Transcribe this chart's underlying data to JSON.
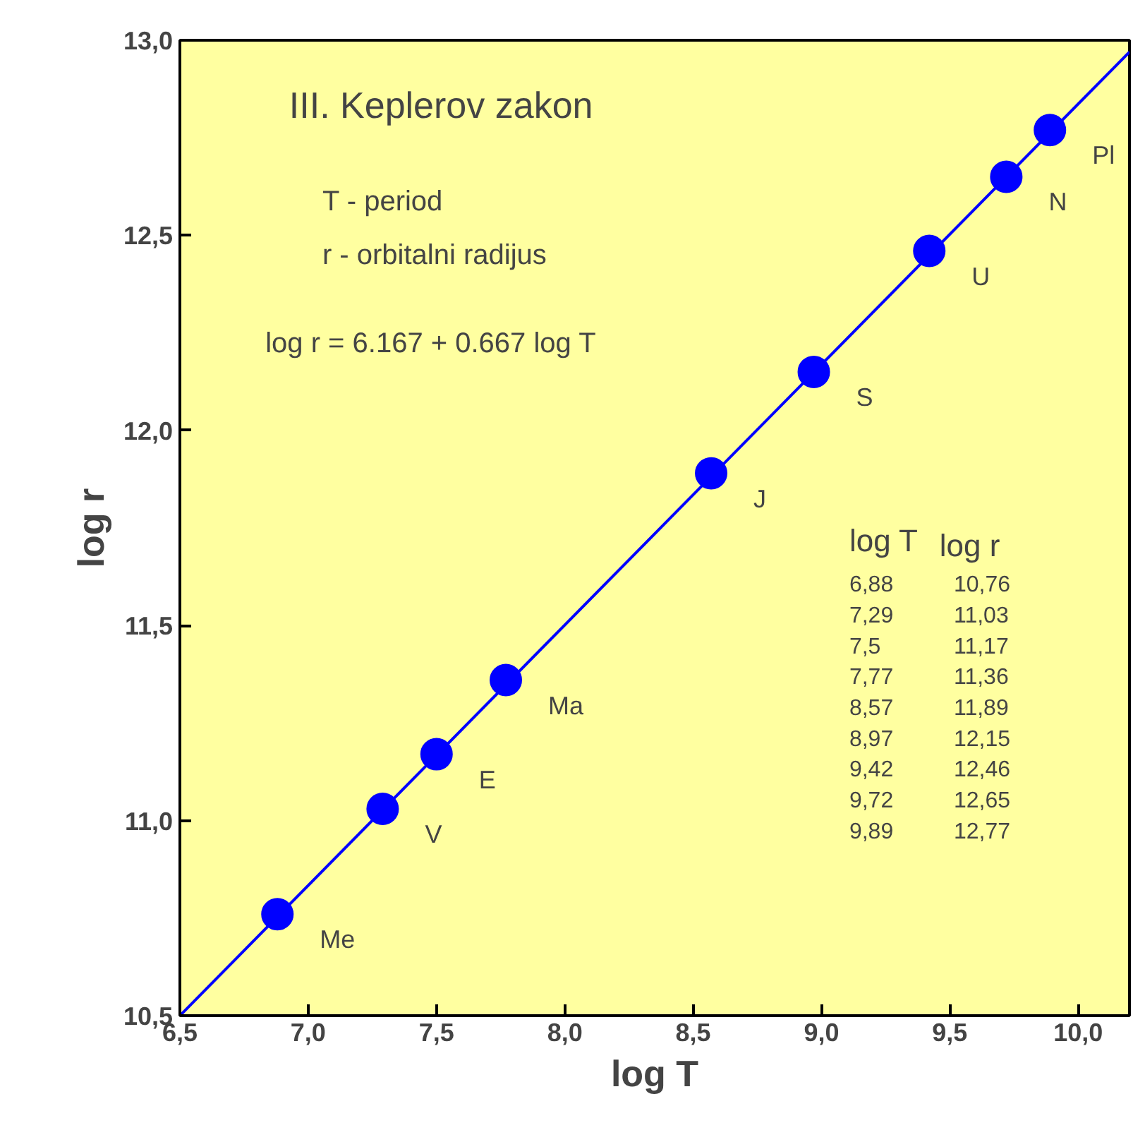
{
  "chart_data": {
    "type": "scatter",
    "title": "III. Keplerov zakon",
    "xlabel": "log T",
    "ylabel": "log r",
    "x": [
      6.88,
      7.29,
      7.5,
      7.77,
      8.57,
      8.97,
      9.42,
      9.72,
      9.89
    ],
    "series": [
      {
        "color": "#0000ff",
        "values": [
          10.76,
          11.03,
          11.17,
          11.36,
          11.89,
          12.15,
          12.46,
          12.65,
          12.77
        ]
      },
      {
        "type": "line",
        "marker": "none",
        "color": "#0000ff",
        "x": [
          6.5,
          10.2
        ],
        "values": [
          10.5,
          12.97
        ]
      }
    ],
    "xlim": [
      6.5,
      10.2
    ],
    "ylim": [
      10.5,
      13.0
    ],
    "xticks": [
      {
        "value": 6.5,
        "label": "6,5"
      },
      {
        "value": 7.0,
        "label": "7,0"
      },
      {
        "value": 7.5,
        "label": "7,5"
      },
      {
        "value": 8.0,
        "label": "8,0"
      },
      {
        "value": 8.5,
        "label": "8,5"
      },
      {
        "value": 9.0,
        "label": "9,0"
      },
      {
        "value": 9.5,
        "label": "9,5"
      },
      {
        "value": 10.0,
        "label": "10,0"
      }
    ],
    "yticks": [
      {
        "value": 10.5,
        "label": "10,5"
      },
      {
        "value": 11.0,
        "label": "11,0"
      },
      {
        "value": 11.5,
        "label": "11,5"
      },
      {
        "value": 12.0,
        "label": "12,0"
      },
      {
        "value": 12.5,
        "label": "12,5"
      },
      {
        "value": 13.0,
        "label": "13,0"
      }
    ],
    "annotations": [
      "T -  period",
      "r -  orbitalni radijus",
      "log r = 6.167 + 0.667 log T",
      "log T",
      "log r",
      "6,88",
      "10,76",
      "7,29",
      "11,03",
      "7,5",
      "11,17",
      "7,77",
      "11,36",
      "8,57",
      "11,89",
      "8,97",
      "12,15",
      "9,42",
      "12,46",
      "9,72",
      "12,65",
      "9,89",
      "12,77",
      {
        "text": "Me",
        "x": 6.88,
        "y": 10.76
      },
      {
        "text": "V",
        "x": 7.29,
        "y": 11.03
      },
      {
        "text": "E",
        "x": 7.5,
        "y": 11.17
      },
      {
        "text": "Ma",
        "x": 7.77,
        "y": 11.36
      },
      {
        "text": "J",
        "x": 8.57,
        "y": 11.89
      },
      {
        "text": "S",
        "x": 8.97,
        "y": 12.15
      },
      {
        "text": "U",
        "x": 9.42,
        "y": 12.46
      },
      {
        "text": "N",
        "x": 9.72,
        "y": 12.65
      },
      {
        "text": "Pl",
        "x": 9.89,
        "y": 12.77
      }
    ],
    "marker": "circle",
    "grid": false
  }
}
